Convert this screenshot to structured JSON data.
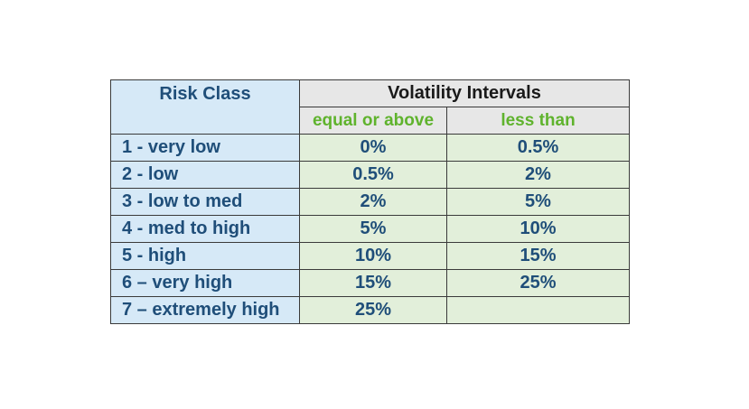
{
  "table": {
    "header": {
      "risk_class": "Risk Class",
      "volatility_intervals": "Volatility Intervals",
      "lower_bound": "equal or above",
      "upper_bound": "less than"
    },
    "rows": [
      {
        "risk_class": "1 - very low",
        "lower": "0%",
        "upper": "0.5%"
      },
      {
        "risk_class": "2 - low",
        "lower": "0.5%",
        "upper": "2%"
      },
      {
        "risk_class": "3 - low to med",
        "lower": "2%",
        "upper": "5%"
      },
      {
        "risk_class": "4 - med to high",
        "lower": "5%",
        "upper": "10%"
      },
      {
        "risk_class": "5 - high",
        "lower": "10%",
        "upper": "15%"
      },
      {
        "risk_class": "6 – very high",
        "lower": "15%",
        "upper": "25%"
      },
      {
        "risk_class": "7 – extremely high",
        "lower": "25%",
        "upper": ""
      }
    ]
  },
  "colors": {
    "class_bg": "#d6e9f7",
    "class_text": "#1f4e79",
    "header_bg": "#e7e7e7",
    "subheader_text": "#5fb32d",
    "value_bg": "#e2efda"
  }
}
